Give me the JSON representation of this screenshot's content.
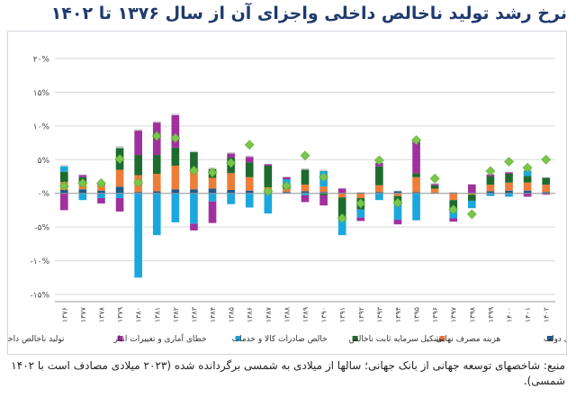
{
  "title": "نرخ رشد تولید ناخالص داخلی واجزای آن از سال ۱۳۷۶ تا ۱۴۰۲",
  "source": "منبع: شاخصهای توسعه جهانی از بانک جهانی؛ سالها از میلادی به شمسی برگردانده شده (۲۰۲۳ میلادی مصادف است با ۱۴۰۲ شمسی).",
  "colors": {
    "gov": "#1f5a8a",
    "household": "#ee7d3a",
    "gfcf": "#1d6b2e",
    "exports": "#1aa7de",
    "imports": "#a0309e",
    "discrepancy": "#c8c8c8",
    "gdp": "#78c64a",
    "grid": "#d9d9d9",
    "axis": "#9a9a9a",
    "text": "#444444"
  },
  "chart_data": {
    "type": "bar",
    "stacked": true,
    "ylim": [
      -15,
      20
    ],
    "yticks": [
      {
        "value": 20,
        "label": "۲۰%"
      },
      {
        "value": 15,
        "label": "۱۵%"
      },
      {
        "value": 10,
        "label": "۱۰%"
      },
      {
        "value": 5,
        "label": "۵%"
      },
      {
        "value": 0,
        "label": "۰%"
      },
      {
        "value": -5,
        "label": "-۵%"
      },
      {
        "value": -10,
        "label": "-۱۰%"
      },
      {
        "value": -15,
        "label": "-۱۵%"
      }
    ],
    "grid": true,
    "legend_position": "bottom",
    "categories": [
      "۱۳۷۶",
      "۱۳۷۷",
      "۱۳۷۸",
      "۱۳۷۹",
      "۱۳۸۰",
      "۱۳۸۱",
      "۱۳۸۲",
      "۱۳۸۳",
      "۱۳۸۴",
      "۱۳۸۵",
      "۱۳۸۶",
      "۱۳۸۷",
      "۱۳۸۸",
      "۱۳۸۹",
      "۱۳۹۰",
      "۱۳۹۱",
      "۱۳۹۲",
      "۱۳۹۳",
      "۱۳۹۴",
      "۱۳۹۵",
      "۱۳۹۶",
      "۱۳۹۷",
      "۱۳۹۸",
      "۱۳۹۹",
      "۱۴۰۰",
      "۱۴۰۱",
      "۱۴۰۲"
    ],
    "series": [
      {
        "key": "gov",
        "name": "هزینه مصرف نهایی دولت",
        "values": [
          0.5,
          0.6,
          0.4,
          1.0,
          0.2,
          0.3,
          0.6,
          0.6,
          0.7,
          0.5,
          0.4,
          0.2,
          0.2,
          0.3,
          0.2,
          0.1,
          0.1,
          0.2,
          0.3,
          0.2,
          0.1,
          0.1,
          0.1,
          0.3,
          0.4,
          0.4,
          0.2
        ]
      },
      {
        "key": "household",
        "name": "هزینه مصرف نهایی",
        "values": [
          1.2,
          1.0,
          0.8,
          2.5,
          2.5,
          2.6,
          3.5,
          2.6,
          1.6,
          2.5,
          2.0,
          0.7,
          0.5,
          1.0,
          0.8,
          -0.6,
          -0.7,
          1.0,
          -0.4,
          2.2,
          0.6,
          -1.0,
          -0.2,
          1.0,
          1.2,
          1.2,
          1.1
        ]
      },
      {
        "key": "gfcf",
        "name": "تشکیل سرمایه ثابت ناخالص",
        "values": [
          1.5,
          0.8,
          0.3,
          3.2,
          3.0,
          2.8,
          2.7,
          2.9,
          1.3,
          2.3,
          2.2,
          3.2,
          0.6,
          2.2,
          -0.3,
          -3.4,
          -1.7,
          2.8,
          -1.2,
          0.6,
          0.5,
          -1.6,
          -0.9,
          1.2,
          1.3,
          1.0,
          1.0
        ]
      },
      {
        "key": "exports",
        "name": "خالص صادرات کالا و خدمات",
        "values": [
          0.8,
          -1.0,
          -0.7,
          -0.7,
          -12.5,
          -6.2,
          -4.3,
          -4.5,
          -1.2,
          -1.6,
          -2.1,
          -3.0,
          0.8,
          -0.3,
          2.3,
          -2.2,
          -1.2,
          -1.0,
          -2.3,
          -4.0,
          0.0,
          -1.1,
          -1.1,
          -0.4,
          -0.5,
          0.8,
          0.0
        ]
      },
      {
        "key": "imports",
        "name": "خطای آماری و تغییرات انبار",
        "values": [
          -2.5,
          0.3,
          -0.8,
          -2.0,
          3.6,
          4.8,
          4.8,
          -1.0,
          -3.2,
          0.6,
          0.8,
          0.2,
          0.3,
          -1.0,
          -1.5,
          0.6,
          -0.5,
          0.5,
          -0.7,
          4.9,
          0.2,
          -0.5,
          1.2,
          0.3,
          0.2,
          -0.5,
          -0.2
        ]
      },
      {
        "key": "discrepancy",
        "name": "",
        "values": [
          0.2,
          0.1,
          0.1,
          0.3,
          0.2,
          0.2,
          0.2,
          0.2,
          0.2,
          0.2,
          0.2,
          0.1,
          0.1,
          0.2,
          0.2,
          0.1,
          0.1,
          0.1,
          0.1,
          0.2,
          0.1,
          0.1,
          0.1,
          0.1,
          0.1,
          0.1,
          0.1
        ]
      }
    ],
    "line": {
      "name": "تولید ناخالص داخلی",
      "values": [
        1.1,
        1.5,
        1.5,
        5.1,
        1.6,
        8.5,
        8.2,
        3.4,
        3.1,
        4.5,
        7.2,
        0.3,
        1.1,
        5.6,
        2.4,
        -3.7,
        -1.5,
        4.9,
        -1.4,
        7.9,
        2.2,
        -2.4,
        -3.1,
        3.3,
        4.7,
        3.8,
        5.0
      ]
    },
    "legend": [
      {
        "key": "gov",
        "label": "هزینه مصرف نهایی دولت",
        "marker": "square"
      },
      {
        "key": "household",
        "label": "هزینه مصرف نهایی",
        "marker": "square"
      },
      {
        "key": "gfcf",
        "label": "تشکیل سرمایه ثابت ناخالص",
        "marker": "square"
      },
      {
        "key": "exports",
        "label": "خالص صادرات کالا و خدمات",
        "marker": "square"
      },
      {
        "key": "imports",
        "label": "خطای آماری و تغییرات انبار",
        "marker": "square"
      },
      {
        "key": "gdp",
        "label": "تولید ناخالص داخلی",
        "marker": "diamond"
      }
    ]
  }
}
